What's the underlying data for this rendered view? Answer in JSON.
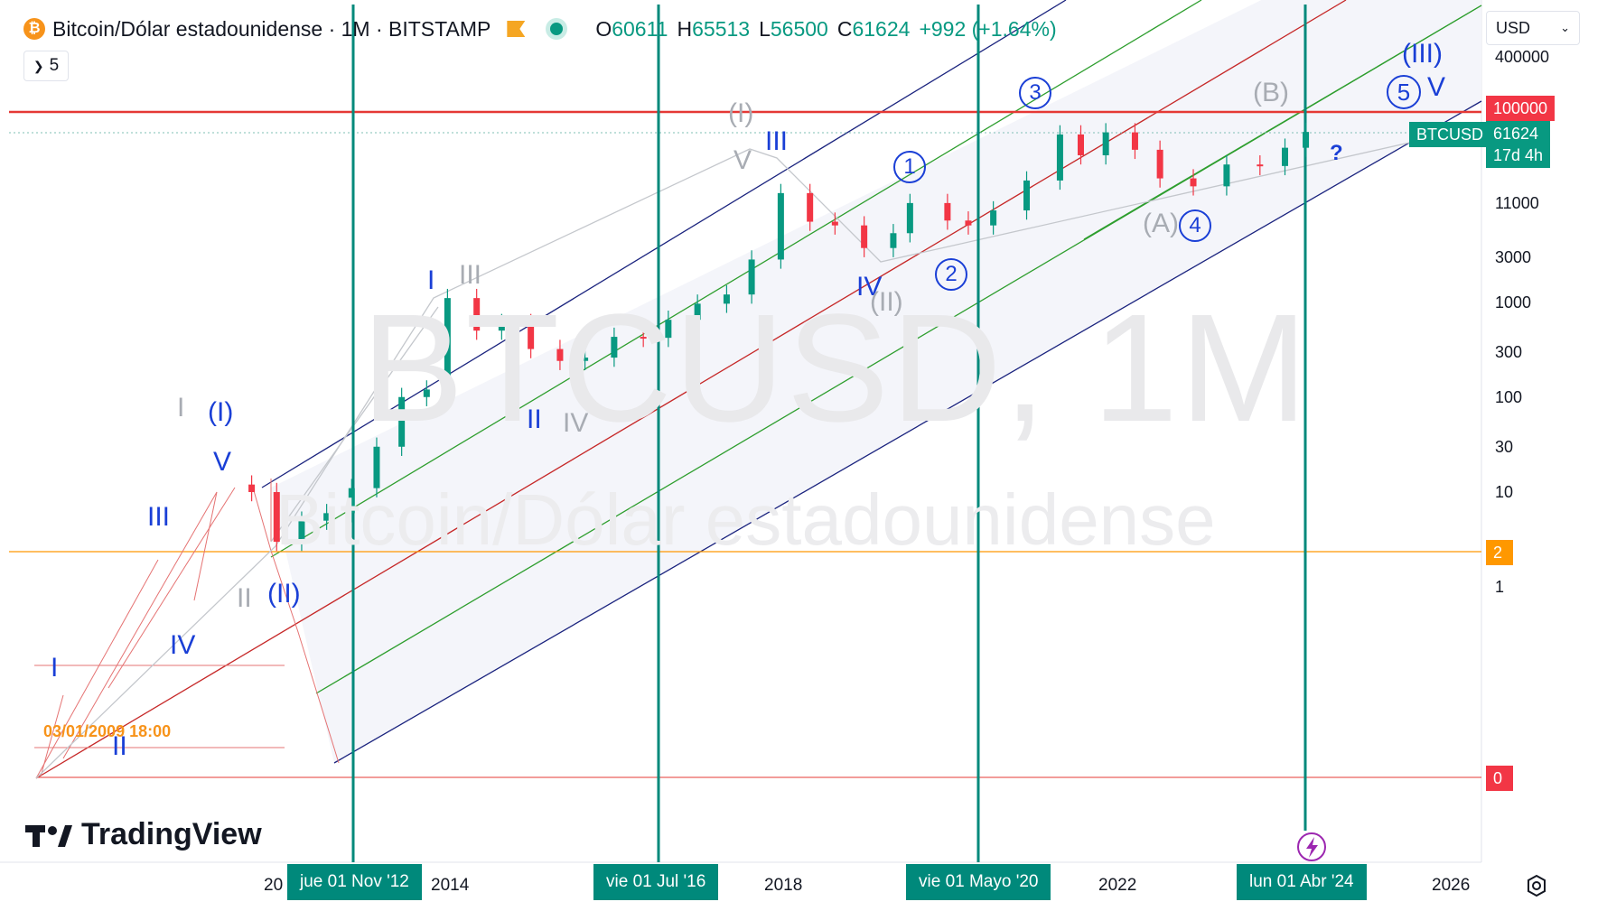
{
  "header": {
    "title": "Bitcoin/Dólar estadounidense · 1M · BITSTAMP",
    "ohlc": [
      {
        "key": "O",
        "value": "60611"
      },
      {
        "key": "H",
        "value": "65513"
      },
      {
        "key": "L",
        "value": "56500"
      },
      {
        "key": "C",
        "value": "61624"
      }
    ],
    "change": "+992 (+1.64%)",
    "interval_collapse": "5"
  },
  "currency_selector": {
    "value": "USD"
  },
  "watermark": {
    "symbol": "BTCUSD, 1M",
    "name": "Bitcoin/Dólar estadounidense"
  },
  "price_axis": {
    "ticks": [
      "400000",
      "11000",
      "3000",
      "1000",
      "300",
      "100",
      "30",
      "10",
      "1"
    ],
    "badges": {
      "level_100000": "100000",
      "symbol": "BTCUSD",
      "last_price": "61624",
      "countdown": "17d 4h",
      "level_2": "2",
      "level_0": "0"
    }
  },
  "time_axis": {
    "ticks": [
      "20",
      "2014",
      "2018",
      "2022",
      "2026"
    ],
    "vertical_lines": [
      "jue 01 Nov '12",
      "vie 01 Jul '16",
      "vie 01 Mayo '20",
      "lun 01 Abr '24"
    ]
  },
  "annotations": {
    "start_date": "03/01/2009 18:00",
    "question": "?"
  },
  "wave_labels": {
    "blue": [
      "I",
      "II",
      "III",
      "IV",
      "V",
      "(I)",
      "(II)",
      "I",
      "II",
      "III",
      "IV",
      "V",
      "(III)"
    ],
    "grey": [
      "I",
      "II",
      "III",
      "IV",
      "V",
      "(I)",
      "(II)",
      "(A)",
      "(B)"
    ],
    "circled": [
      "1",
      "2",
      "3",
      "4",
      "5"
    ]
  },
  "branding": {
    "logo": "TradingView"
  },
  "colors": {
    "up": "#089981",
    "down": "#f23645",
    "channel_blue": "#1a237e",
    "channel_green": "#2e9e2e",
    "channel_red": "#c62828",
    "vline": "#00897b",
    "level_orange": "#ff9800",
    "level_red": "#e53935"
  },
  "chart_data": {
    "type": "candlestick",
    "title": "Bitcoin/Dólar estadounidense · 1M · BITSTAMP",
    "y_scale": "log",
    "yticks": [
      1,
      10,
      30,
      100,
      300,
      1000,
      3000,
      11000,
      400000
    ],
    "xticks": [
      "2014",
      "2018",
      "2022",
      "2026"
    ],
    "last": {
      "open": 60611,
      "high": 65513,
      "low": 56500,
      "close": 61624
    },
    "levels": [
      100000,
      2,
      0
    ],
    "series": [
      {
        "x": [
          2011.6,
          2011.9,
          2012.2,
          2012.5,
          2012.8,
          2013.1,
          2013.4,
          2013.7,
          2013.95,
          2014.3,
          2014.6,
          2014.95,
          2015.3,
          2015.6,
          2015.95,
          2016.3,
          2016.6,
          2016.95,
          2017.3,
          2017.6,
          2017.95,
          2018.3,
          2018.6,
          2018.95,
          2019.3,
          2019.5,
          2019.95,
          2020.2,
          2020.5,
          2020.9,
          2021.3,
          2021.55,
          2021.85,
          2022.2,
          2022.5,
          2022.9,
          2023.3,
          2023.7,
          2024.0,
          2024.25
        ],
        "values": [
          10,
          3,
          5,
          6,
          11,
          30,
          100,
          120,
          1100,
          500,
          600,
          320,
          240,
          260,
          430,
          420,
          650,
          960,
          1200,
          2800,
          14000,
          7000,
          6400,
          3700,
          5300,
          11000,
          7200,
          6400,
          9200,
          19000,
          58000,
          35000,
          61000,
          40000,
          20000,
          16500,
          28000,
          27000,
          42000,
          61624
        ]
      }
    ]
  }
}
